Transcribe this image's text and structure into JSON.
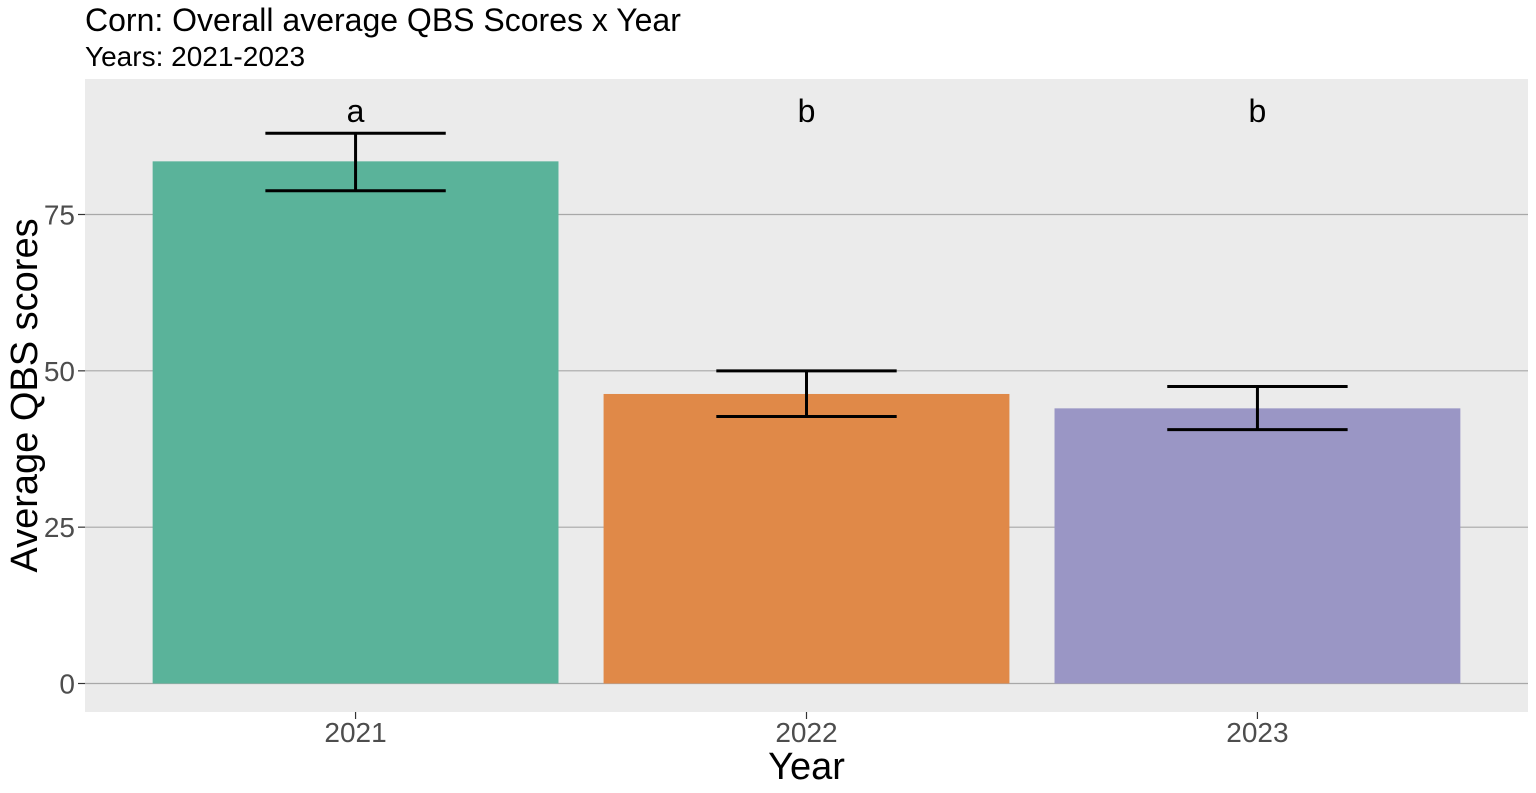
{
  "title": "Corn: Overall average QBS Scores x Year",
  "subtitle": "Years: 2021-2023",
  "chart_data": {
    "type": "bar",
    "title": "Corn: Overall average QBS Scores x Year",
    "subtitle": "Years: 2021-2023",
    "xlabel": "Year",
    "ylabel": "Average QBS scores",
    "categories": [
      "2021",
      "2022",
      "2023"
    ],
    "values": [
      83.5,
      46.3,
      44.0
    ],
    "error_low": [
      78.8,
      42.7,
      40.6
    ],
    "error_high": [
      88.0,
      50.0,
      47.5
    ],
    "significance_letters": [
      "a",
      "b",
      "b"
    ],
    "bar_colors": [
      "#5AB39A",
      "#E08948",
      "#9A96C5"
    ],
    "yticks": [
      0,
      25,
      50,
      75
    ],
    "ylim": [
      -4.5,
      96.5
    ],
    "grid": true,
    "legend": "none",
    "panel_background": "#EBEBEB",
    "grid_color": "#A8A8A8"
  }
}
